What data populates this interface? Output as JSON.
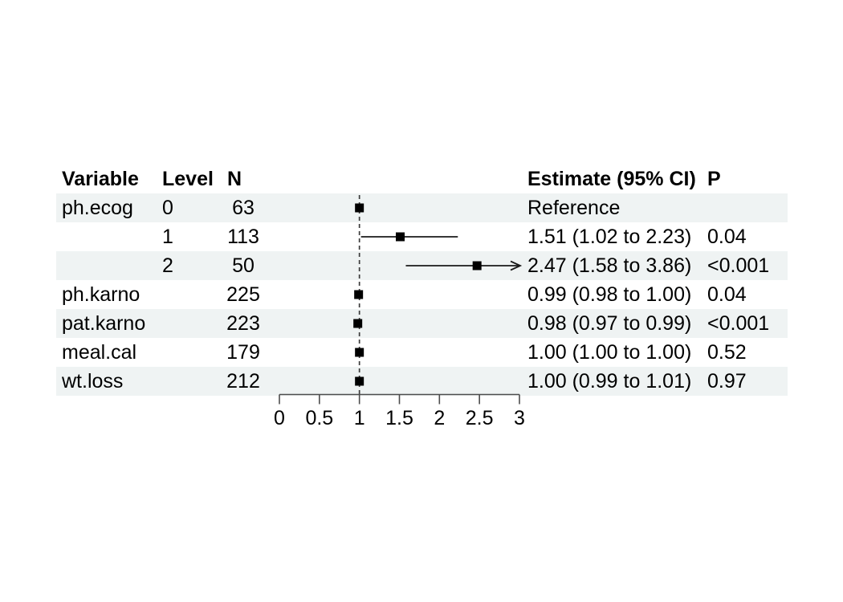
{
  "figure": {
    "background": "#ffffff",
    "row_shade_color": "#eff3f3",
    "text_color": "#000000",
    "marker_color": "#000000",
    "ci_line_color": "#1a1a1a",
    "reference_line_color": "#3c3c3c",
    "axis_color": "#4d4d4d"
  },
  "chart_data": {
    "type": "forest",
    "title": "",
    "columns": {
      "variable": "Variable",
      "level": "Level",
      "n": "N",
      "estimate": "Estimate (95% CI)",
      "p": "P"
    },
    "axis": {
      "min": 0,
      "max": 3,
      "tick_values": [
        0,
        0.5,
        1,
        1.5,
        2,
        2.5,
        3
      ],
      "tick_labels": [
        "0",
        "0.5",
        "1",
        "1.5",
        "2",
        "2.5",
        "3"
      ],
      "reference_line": 1
    },
    "rows": [
      {
        "variable": "ph.ecog",
        "level": "0",
        "n": "63",
        "estimate": 1.0,
        "ci_low": null,
        "ci_high": null,
        "estimate_label": "Reference",
        "p": "",
        "shaded": true,
        "reference": true,
        "clipped_high": false
      },
      {
        "variable": "",
        "level": "1",
        "n": "113",
        "estimate": 1.51,
        "ci_low": 1.02,
        "ci_high": 2.23,
        "estimate_label": "1.51 (1.02 to 2.23)",
        "p": "0.04",
        "shaded": false,
        "reference": false,
        "clipped_high": false
      },
      {
        "variable": "",
        "level": "2",
        "n": "50",
        "estimate": 2.47,
        "ci_low": 1.58,
        "ci_high": 3.86,
        "estimate_label": "2.47 (1.58 to 3.86)",
        "p": "<0.001",
        "shaded": true,
        "reference": false,
        "clipped_high": true
      },
      {
        "variable": "ph.karno",
        "level": "",
        "n": "225",
        "estimate": 0.99,
        "ci_low": 0.98,
        "ci_high": 1.0,
        "estimate_label": "0.99 (0.98 to 1.00)",
        "p": "0.04",
        "shaded": false,
        "reference": false,
        "clipped_high": false
      },
      {
        "variable": "pat.karno",
        "level": "",
        "n": "223",
        "estimate": 0.98,
        "ci_low": 0.97,
        "ci_high": 0.99,
        "estimate_label": "0.98 (0.97 to 0.99)",
        "p": "<0.001",
        "shaded": true,
        "reference": false,
        "clipped_high": false
      },
      {
        "variable": "meal.cal",
        "level": "",
        "n": "179",
        "estimate": 1.0,
        "ci_low": 1.0,
        "ci_high": 1.0,
        "estimate_label": "1.00 (1.00 to 1.00)",
        "p": "0.52",
        "shaded": false,
        "reference": false,
        "clipped_high": false
      },
      {
        "variable": "wt.loss",
        "level": "",
        "n": "212",
        "estimate": 1.0,
        "ci_low": 0.99,
        "ci_high": 1.01,
        "estimate_label": "1.00 (0.99 to 1.01)",
        "p": "0.97",
        "shaded": true,
        "reference": false,
        "clipped_high": false
      }
    ]
  }
}
